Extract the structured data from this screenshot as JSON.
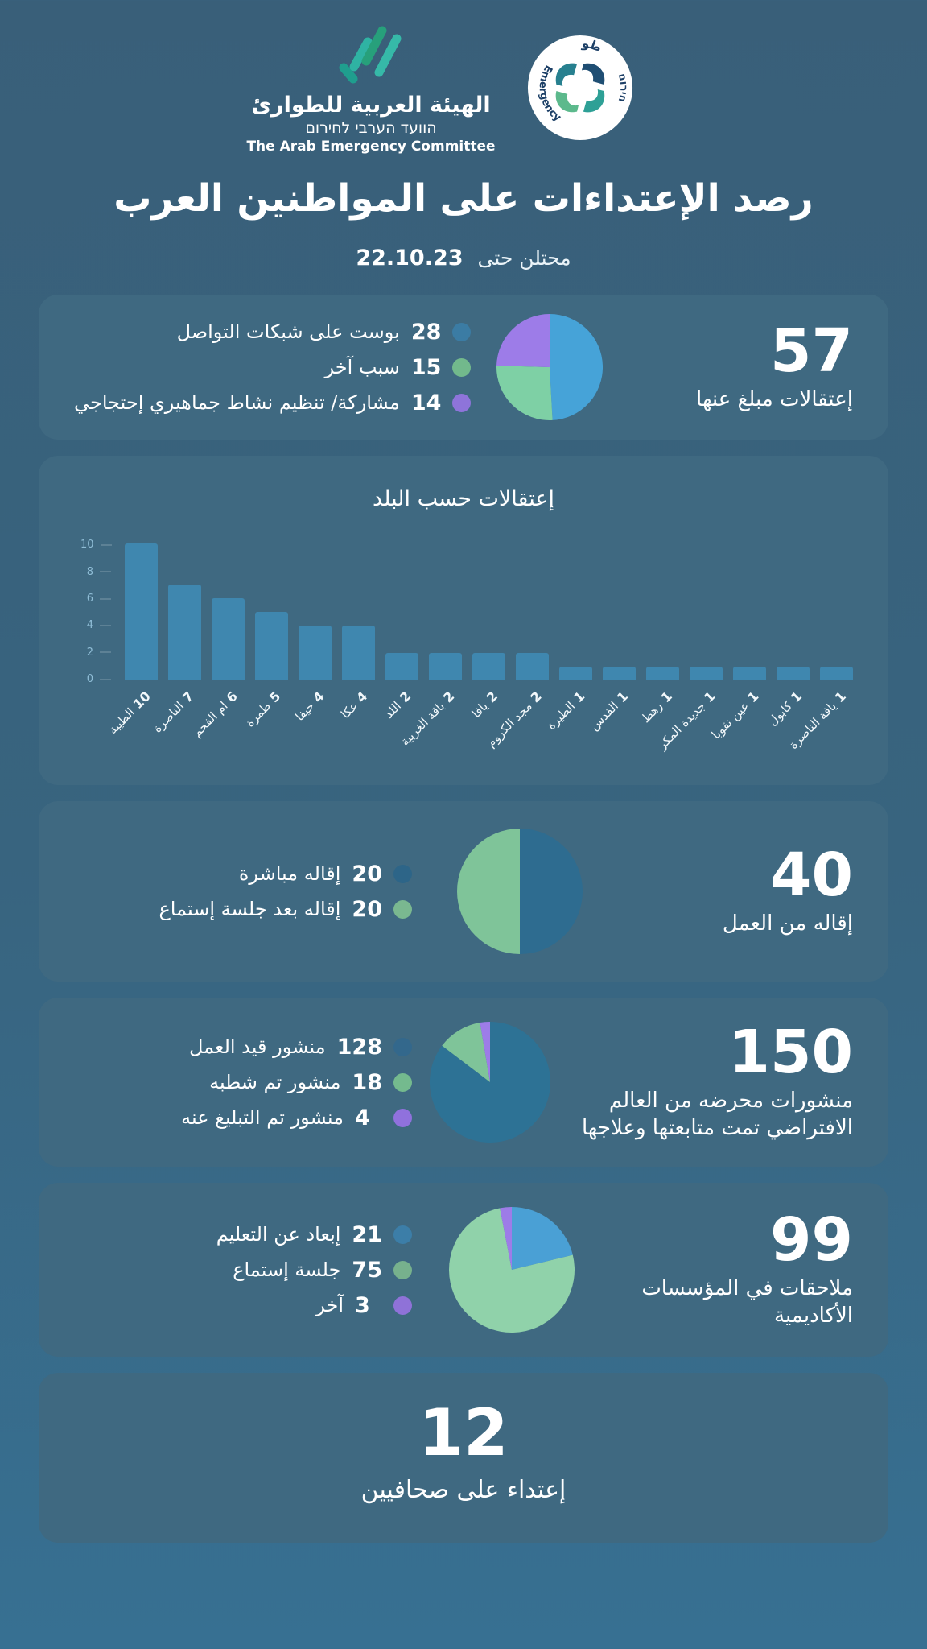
{
  "header": {
    "org_logo": {
      "name_ar": "الهيئة العربية للطوارئ",
      "name_he": "הוועד הערבי לחירום",
      "name_en": "The Arab Emergency Committee"
    },
    "badge": {
      "top_ar": "طوارئ",
      "arc_en": "Emergency",
      "arc_he": "חירום"
    },
    "title": "رصد الإعتداءات على المواطنين العرب",
    "subtitle_prefix": "محتلن حتى",
    "subtitle_date": "22.10.23"
  },
  "chart_data": [
    {
      "id": "reported-arrests",
      "type": "pie",
      "total": "57",
      "title": "إعتقالات مبلغ عنها",
      "legend_position": "left",
      "slices": [
        {
          "label": "بوست على شبكات التواصل",
          "value": 28,
          "color": "#46a3d8",
          "dot_color": "#3b7ca4"
        },
        {
          "label": "سبب آخر",
          "value": 15,
          "color": "#7ed0a5",
          "dot_color": "#72b98c"
        },
        {
          "label": "مشاركة/ تنظيم نشاط جماهيري إحتجاجي",
          "value": 14,
          "color": "#9d7ce8",
          "dot_color": "#8e74da"
        }
      ]
    },
    {
      "id": "arrests-by-town",
      "type": "bar",
      "title": "إعتقالات حسب البلد",
      "categories": [
        "الطيبة",
        "الناصرة",
        "ام الفحم",
        "طمرة",
        "حيفا",
        "عكا",
        "اللد",
        "باقة الغربية",
        "يافا",
        "مجد الكروم",
        "الطيرة",
        "القدس",
        "رهط",
        "جديدة المكر",
        "عين نقوبا",
        "كابول",
        "يافة الناصرة"
      ],
      "values": [
        10,
        7,
        6,
        5,
        4,
        4,
        2,
        2,
        2,
        2,
        1,
        1,
        1,
        1,
        1,
        1,
        1
      ],
      "ylim": [
        0,
        10
      ],
      "yticks": [
        10,
        8,
        6,
        4,
        2,
        0
      ],
      "bar_color": "#3f87af",
      "tick_color": "#8fbdd6",
      "grid": false
    },
    {
      "id": "work-dismissals",
      "type": "pie",
      "total": "40",
      "title": "إقاله من العمل",
      "slices": [
        {
          "label": "إقاله مباشرة",
          "value": 20,
          "color": "#2e6c90",
          "dot_color": "#2d6588"
        },
        {
          "label": "إقاله بعد جلسة إستماع",
          "value": 20,
          "color": "#7fc499",
          "dot_color": "#7ab890"
        }
      ]
    },
    {
      "id": "incitement-posts",
      "type": "pie",
      "total": "150",
      "title": "منشورات محرضه من العالم الافتراضي تمت متابعتها وعلاجها",
      "slices": [
        {
          "label": "منشور قيد العمل",
          "value": 128,
          "color": "#2d7295",
          "dot_color": "#33688c"
        },
        {
          "label": "منشور تم شطبه",
          "value": 18,
          "color": "#7fc499",
          "dot_color": "#74ba8e"
        },
        {
          "label": "منشور تم التبليغ عنه",
          "value": 4,
          "color": "#9d7ce8",
          "dot_color": "#9071dd"
        }
      ]
    },
    {
      "id": "academic-prosecutions",
      "type": "pie",
      "total": "99",
      "title": "ملاحقات في المؤسسات الأكاديمية",
      "slices": [
        {
          "label": "إبعاد عن التعليم",
          "value": 21,
          "color": "#4aa0d5",
          "dot_color": "#3c7ea8"
        },
        {
          "label": "جلسة إستماع",
          "value": 75,
          "color": "#90d2aa",
          "dot_color": "#77b18d"
        },
        {
          "label": "آخر",
          "value": 3,
          "color": "#9d7ce8",
          "dot_color": "#8f72d8"
        }
      ]
    },
    {
      "id": "journalist-attacks",
      "type": "stat",
      "total": "12",
      "title": "إعتداء على صحافيين"
    }
  ]
}
